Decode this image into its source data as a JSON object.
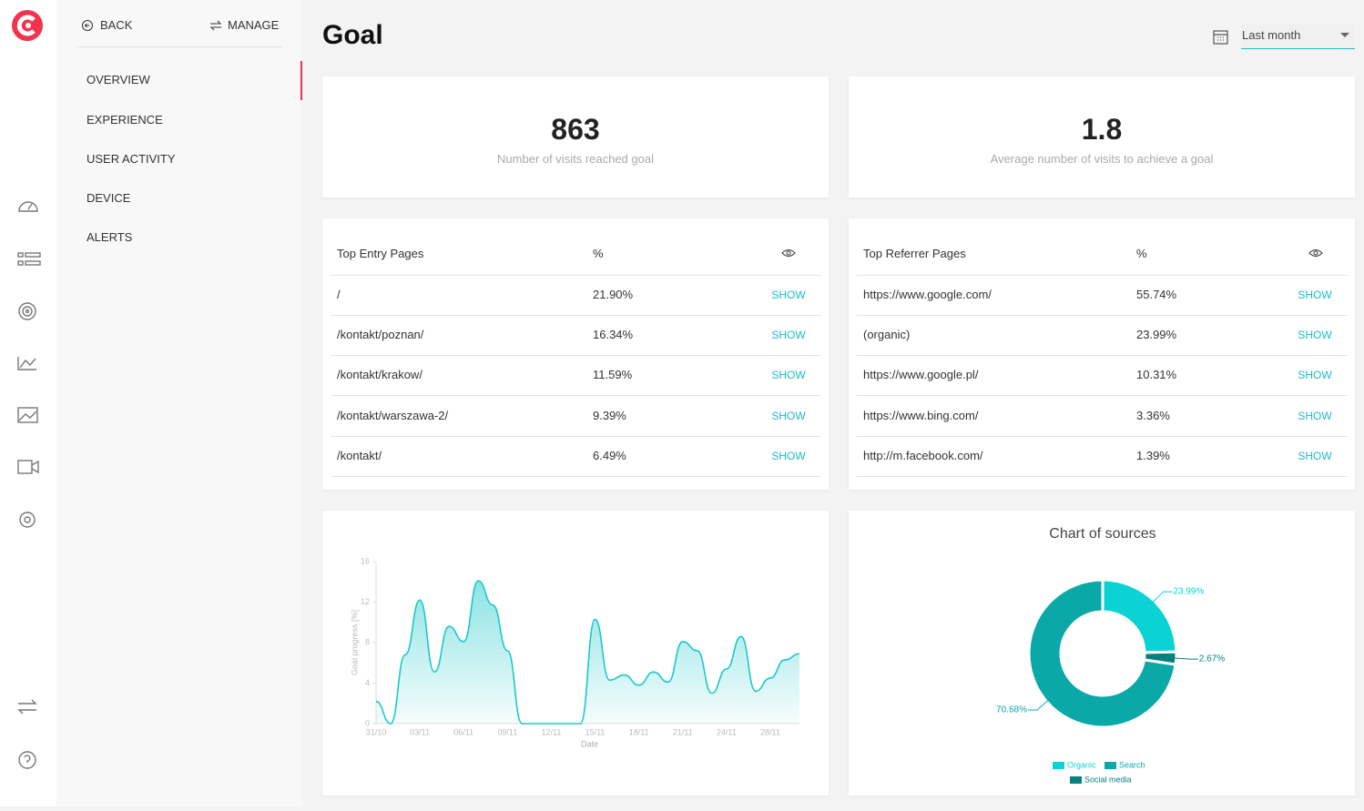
{
  "nav": {
    "back": "BACK",
    "manage": "MANAGE",
    "items": [
      "OVERVIEW",
      "EXPERIENCE",
      "USER ACTIVITY",
      "DEVICE",
      "ALERTS"
    ]
  },
  "header": {
    "title": "Goal",
    "date_range": "Last month"
  },
  "stats": [
    {
      "value": "863",
      "label": "Number of visits reached goal"
    },
    {
      "value": "1.8",
      "label": "Average number of visits to achieve a goal"
    }
  ],
  "tables": [
    {
      "columns": [
        "Top Entry Pages",
        "%"
      ],
      "action": "SHOW",
      "rows": [
        [
          "/",
          "21.90%"
        ],
        [
          "/kontakt/poznan/",
          "16.34%"
        ],
        [
          "/kontakt/krakow/",
          "11.59%"
        ],
        [
          "/kontakt/warszawa-2/",
          "9.39%"
        ],
        [
          "/kontakt/",
          "6.49%"
        ]
      ]
    },
    {
      "columns": [
        "Top Referrer Pages",
        "%"
      ],
      "action": "SHOW",
      "rows": [
        [
          "https://www.google.com/",
          "55.74%"
        ],
        [
          "(organic)",
          "23.99%"
        ],
        [
          "https://www.google.pl/",
          "10.31%"
        ],
        [
          "https://www.bing.com/",
          "3.36%"
        ],
        [
          "http://m.facebook.com/",
          "1.39%"
        ]
      ]
    }
  ],
  "chart_data": [
    {
      "type": "area",
      "x_label": "Date",
      "y_label": "Goal progress [%]",
      "color": "#1cc8c8",
      "categories": [
        "31/10",
        null,
        null,
        "03/11",
        null,
        null,
        "06/11",
        null,
        null,
        "09/11",
        null,
        null,
        "12/11",
        null,
        null,
        "15/11",
        null,
        null,
        "18/11",
        null,
        null,
        "21/11",
        null,
        null,
        "24/11",
        null,
        null,
        "28/11",
        null,
        null
      ],
      "values": [
        2.2,
        0,
        6.8,
        12.2,
        5.1,
        9.6,
        8.1,
        14.1,
        11.7,
        7.2,
        0,
        0,
        0,
        0,
        0,
        10.3,
        4.3,
        4.8,
        3.8,
        5.1,
        4.1,
        8.1,
        7.2,
        3.0,
        5.4,
        8.6,
        3.2,
        4.5,
        6.3,
        6.9
      ],
      "ylim": [
        0,
        16
      ],
      "yticks": [
        0,
        4,
        8,
        12,
        16
      ]
    },
    {
      "type": "donut",
      "title": "Chart of sources",
      "categories": [
        "Organic",
        "Social media",
        "Search"
      ],
      "values": [
        23.99,
        2.67,
        70.68
      ],
      "value_labels": [
        "23.99%",
        "2.67%",
        "70.68%"
      ],
      "colors": [
        "#0bd3d3",
        "#08807f",
        "#0aa9a8"
      ]
    }
  ]
}
